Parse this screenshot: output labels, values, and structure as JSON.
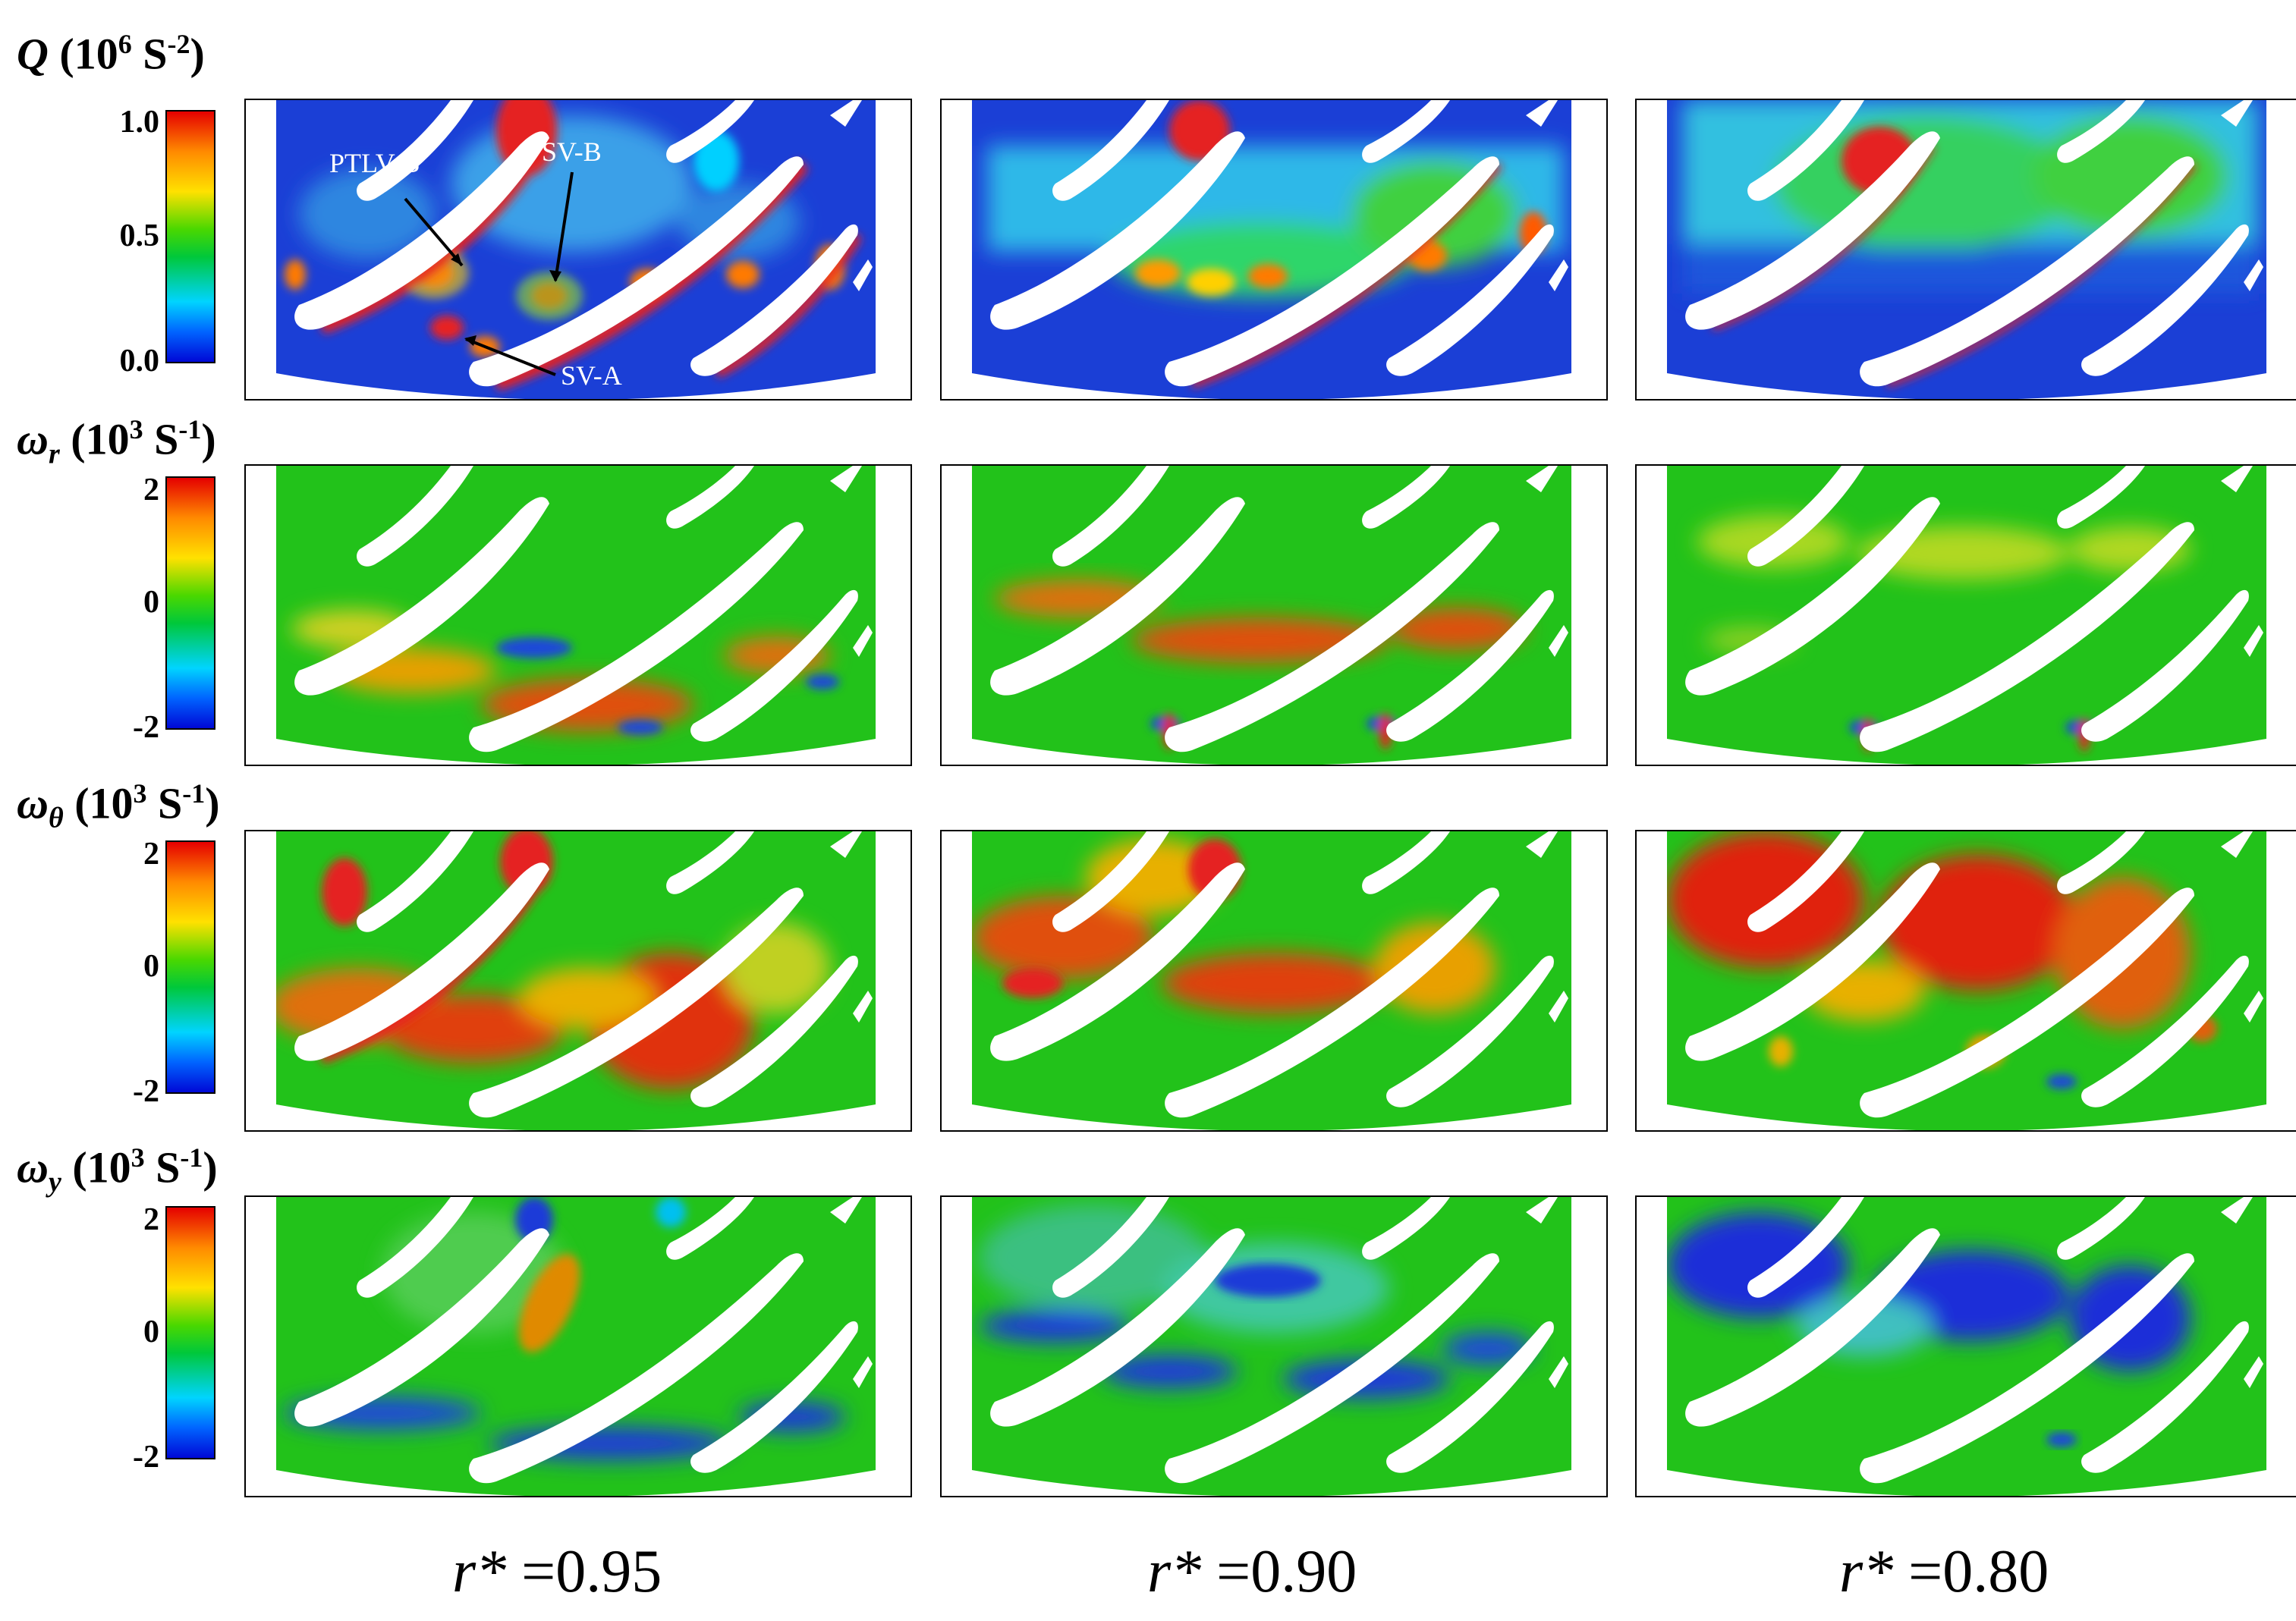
{
  "rows": [
    {
      "symbol": "Q",
      "subscript": "",
      "unit_base": "(10",
      "unit_exp": "6",
      "unit_rest": " S",
      "unit_rest_exp": "-2",
      "unit_close": ")",
      "ticks": [
        "1.0",
        "0.5",
        "0.0"
      ],
      "colormap": "jet"
    },
    {
      "symbol": "ω",
      "subscript": "r",
      "unit_base": "(10",
      "unit_exp": "3",
      "unit_rest": " S",
      "unit_rest_exp": "-1",
      "unit_close": ")",
      "ticks": [
        "2",
        "0",
        "-2"
      ],
      "colormap": "jet"
    },
    {
      "symbol": "ω",
      "subscript": "θ",
      "unit_base": "(10",
      "unit_exp": "3",
      "unit_rest": " S",
      "unit_rest_exp": "-1",
      "unit_close": ")",
      "ticks": [
        "2",
        "0",
        "-2"
      ],
      "colormap": "jet"
    },
    {
      "symbol": "ω",
      "subscript": "y",
      "unit_base": "(10",
      "unit_exp": "3",
      "unit_rest": " S",
      "unit_rest_exp": "-1",
      "unit_close": ")",
      "ticks": [
        "2",
        "0",
        "-2"
      ],
      "colormap": "jet"
    }
  ],
  "columns": [
    {
      "prefix": "r*",
      "value": " =0.95"
    },
    {
      "prefix": "r*",
      "value": " =0.90"
    },
    {
      "prefix": "r*",
      "value": " =0.80"
    }
  ],
  "annotations": {
    "ptlv_b": "PTLV-B",
    "sv_b": "SV-B",
    "sv_a": "SV-A"
  },
  "colors": {
    "background_field": "#22c21a",
    "low": "#0a1fd6",
    "high": "#e50000",
    "mid": "#ffd000",
    "cyan": "#00c8ff"
  }
}
